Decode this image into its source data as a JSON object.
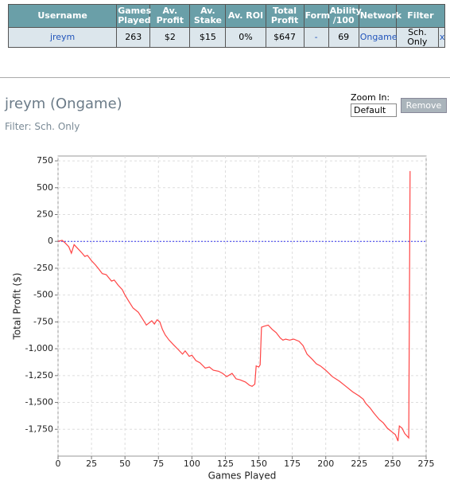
{
  "table": {
    "headers": [
      "Username",
      "Games Played",
      "Av. Profit",
      "Av. Stake",
      "Av. ROI",
      "Total Profit",
      "Form",
      "Ability /100",
      "Network",
      "Filter"
    ],
    "rows": [
      [
        "jreym",
        "263",
        "$2",
        "$15",
        "0%",
        "$647",
        "-",
        "69",
        "Ongame",
        "Sch. Only",
        "x"
      ]
    ]
  },
  "header": {
    "title": "jreym (Ongame)",
    "filter": "Filter: Sch. Only"
  },
  "controls": {
    "zoom_label": "Zoom In:",
    "zoom_value": "Default",
    "remove_button": "Remove"
  },
  "chart_data": {
    "type": "line",
    "x_label": "Games Played",
    "y_label": "Total Profit ($)",
    "xlim": [
      0,
      275
    ],
    "xticks": [
      0,
      25,
      50,
      75,
      100,
      125,
      150,
      175,
      200,
      225,
      250,
      275
    ],
    "ylim": [
      -2000,
      795
    ],
    "yticks": [
      750,
      500,
      250,
      0,
      -250,
      -500,
      -750,
      {
        "value": -1000,
        "label": "-1,000"
      },
      {
        "value": -1250,
        "label": "-1,250"
      },
      {
        "value": -1500,
        "label": "-1,500"
      },
      {
        "value": -1750,
        "label": "-1,750"
      }
    ],
    "grid": true,
    "reference_line_y": 0,
    "reference_color": "#3333ee",
    "series": [
      {
        "color": "#ff4444",
        "x": [
          0,
          3,
          5,
          8,
          10,
          12,
          15,
          18,
          20,
          22,
          25,
          28,
          30,
          33,
          36,
          40,
          42,
          45,
          48,
          50,
          53,
          56,
          60,
          63,
          66,
          68,
          70,
          72,
          74,
          76,
          78,
          80,
          83,
          86,
          90,
          93,
          95,
          98,
          100,
          103,
          106,
          110,
          113,
          116,
          120,
          123,
          126,
          130,
          133,
          136,
          140,
          143,
          145,
          147,
          148,
          150,
          151,
          152,
          154,
          157,
          160,
          163,
          166,
          168,
          170,
          173,
          176,
          180,
          183,
          186,
          190,
          193,
          196,
          200,
          205,
          210,
          215,
          220,
          225,
          228,
          230,
          233,
          236,
          240,
          243,
          246,
          250,
          252,
          253,
          254,
          255,
          257,
          259,
          262,
          263
        ],
        "values": [
          0,
          10,
          -10,
          -50,
          -110,
          -30,
          -70,
          -110,
          -140,
          -130,
          -180,
          -220,
          -250,
          -300,
          -310,
          -370,
          -360,
          -410,
          -450,
          -500,
          -560,
          -620,
          -660,
          -720,
          -780,
          -760,
          -740,
          -770,
          -730,
          -750,
          -820,
          -870,
          -920,
          -960,
          -1010,
          -1050,
          -1020,
          -1070,
          -1060,
          -1110,
          -1130,
          -1180,
          -1170,
          -1200,
          -1210,
          -1230,
          -1260,
          -1230,
          -1280,
          -1290,
          -1310,
          -1340,
          -1350,
          -1330,
          -1160,
          -1170,
          -1150,
          -800,
          -790,
          -780,
          -820,
          -850,
          -900,
          -920,
          -910,
          -920,
          -910,
          -930,
          -970,
          -1050,
          -1100,
          -1140,
          -1160,
          -1200,
          -1260,
          -1300,
          -1350,
          -1400,
          -1440,
          -1470,
          -1510,
          -1550,
          -1600,
          -1660,
          -1690,
          -1740,
          -1780,
          -1800,
          -1830,
          -1860,
          -1720,
          -1740,
          -1790,
          -1830,
          655
        ]
      }
    ]
  }
}
